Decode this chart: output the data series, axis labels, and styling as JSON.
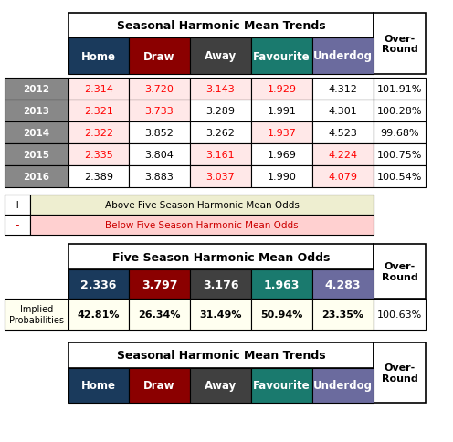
{
  "title1": "Seasonal Harmonic Mean Trends",
  "title2": "Five Season Harmonic Mean Odds",
  "title3": "Seasonal Harmonic Mean Trends",
  "col_headers": [
    "Home",
    "Draw",
    "Away",
    "Favourite",
    "Underdog"
  ],
  "col_header_colors": [
    "#1a3a5c",
    "#8b0000",
    "#404040",
    "#1a7a6e",
    "#6b6b9e"
  ],
  "col_header_text_colors": [
    "#ffffff",
    "#ffffff",
    "#ffffff",
    "#ffffff",
    "#ffffff"
  ],
  "years": [
    "2012",
    "2013",
    "2014",
    "2015",
    "2016"
  ],
  "data": [
    [
      2.314,
      3.72,
      3.143,
      1.929,
      4.312,
      "101.91%"
    ],
    [
      2.321,
      3.733,
      3.289,
      1.991,
      4.301,
      "100.28%"
    ],
    [
      2.322,
      3.852,
      3.262,
      1.937,
      4.523,
      "99.68%"
    ],
    [
      2.335,
      3.804,
      3.161,
      1.969,
      4.224,
      "100.75%"
    ],
    [
      2.389,
      3.883,
      3.037,
      1.99,
      4.079,
      "100.54%"
    ]
  ],
  "means": [
    2.336,
    3.797,
    3.176,
    1.963,
    4.283
  ],
  "mean_values": [
    "2.336",
    "3.797",
    "3.176",
    "1.963",
    "4.283"
  ],
  "mean_bg_colors": [
    "#1a3a5c",
    "#8b0000",
    "#404040",
    "#1a7a6e",
    "#6b6b9e"
  ],
  "implied_probs": [
    "42.81%",
    "26.34%",
    "31.49%",
    "50.94%",
    "23.35%"
  ],
  "over_round_mean": "100.63%",
  "legend_plus_bg": "#eeeed0",
  "legend_minus_bg": "#ffd0d0",
  "bg_color": "#ffffff",
  "cell_below_bg": "#ffe8e8",
  "cell_below_fg": "#ff0000",
  "implied_bg": "#fffff0"
}
